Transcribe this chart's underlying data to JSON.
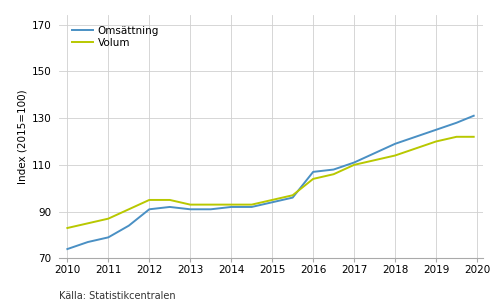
{
  "years": [
    2010,
    2010.5,
    2011,
    2011.5,
    2012,
    2012.5,
    2013,
    2013.5,
    2014,
    2014.5,
    2015,
    2015.5,
    2016,
    2016.5,
    2017,
    2017.5,
    2018,
    2018.5,
    2019,
    2019.5,
    2019.92
  ],
  "omsluttning": [
    74,
    77,
    79,
    84,
    91,
    92,
    91,
    91,
    92,
    92,
    94,
    96,
    107,
    108,
    111,
    115,
    119,
    122,
    125,
    128,
    131
  ],
  "volym": [
    83,
    85,
    87,
    91,
    95,
    95,
    93,
    93,
    93,
    93,
    95,
    97,
    104,
    106,
    110,
    112,
    114,
    117,
    120,
    122,
    122
  ],
  "omsluttning_color": "#4a90c4",
  "volym_color": "#b8c800",
  "xlabel_ticks": [
    2010,
    2011,
    2012,
    2013,
    2014,
    2015,
    2016,
    2017,
    2018,
    2019,
    2020
  ],
  "yticks": [
    70,
    90,
    110,
    130,
    150,
    170
  ],
  "ylim": [
    70,
    174
  ],
  "xlim": [
    2009.8,
    2020.15
  ],
  "ylabel": "Index (2015=100)",
  "source": "Källa: Statistikcentralen",
  "legend_omsluttning": "Omsättning",
  "legend_volym": "Volum",
  "background_color": "#ffffff",
  "grid_color": "#d0d0d0",
  "axis_fontsize": 7.5,
  "legend_fontsize": 7.5,
  "source_fontsize": 7
}
